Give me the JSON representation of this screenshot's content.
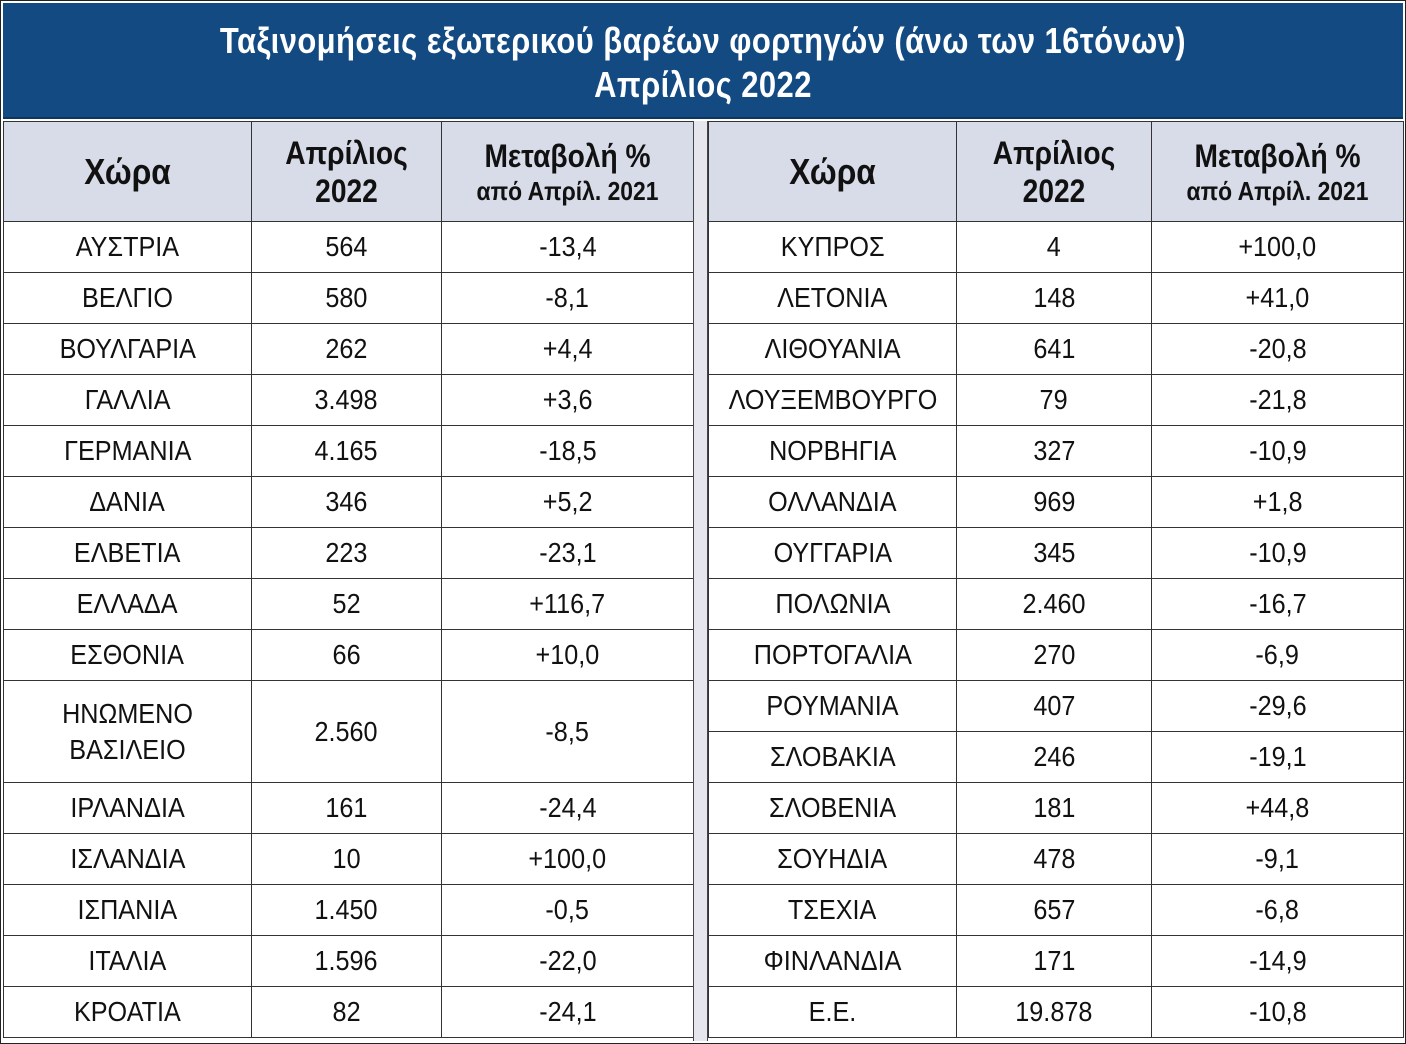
{
  "chart_data": {
    "type": "table",
    "title": "Ταξινομήσεις εξωτερικού βαρέων φορτηγών (άνω των 16τόνων)",
    "subtitle": "Απρίλιος 2022",
    "columns": {
      "country": "Χώρα",
      "value_line1": "Απρίλιος",
      "value_line2": "2022",
      "change_line1": "Μεταβολή %",
      "change_line2": "από Απρίλ. 2021"
    },
    "left_rows": [
      {
        "country": "ΑΥΣΤΡΙΑ",
        "value": "564",
        "change": "-13,4"
      },
      {
        "country": "ΒΕΛΓΙΟ",
        "value": "580",
        "change": "-8,1"
      },
      {
        "country": "ΒΟΥΛΓΑΡΙΑ",
        "value": "262",
        "change": "+4,4"
      },
      {
        "country": "ΓΑΛΛΙΑ",
        "value": "3.498",
        "change": "+3,6"
      },
      {
        "country": "ΓΕΡΜΑΝΙΑ",
        "value": "4.165",
        "change": "-18,5"
      },
      {
        "country": "ΔΑΝΙΑ",
        "value": "346",
        "change": "+5,2"
      },
      {
        "country": "ΕΛΒΕΤΙΑ",
        "value": "223",
        "change": "-23,1"
      },
      {
        "country": "ΕΛΛΑΔΑ",
        "value": "52",
        "change": "+116,7"
      },
      {
        "country": "ΕΣΘΟΝΙΑ",
        "value": "66",
        "change": "+10,0"
      },
      {
        "country": "ΗΝΩΜΕΝΟ ΒΑΣΙΛΕΙΟ",
        "value": "2.560",
        "change": "-8,5"
      },
      {
        "country": "ΙΡΛΑΝΔΙΑ",
        "value": "161",
        "change": "-24,4"
      },
      {
        "country": "ΙΣΛΑΝΔΙΑ",
        "value": "10",
        "change": "+100,0"
      },
      {
        "country": "ΙΣΠΑΝΙΑ",
        "value": "1.450",
        "change": "-0,5"
      },
      {
        "country": "ΙΤΑΛΙΑ",
        "value": "1.596",
        "change": "-22,0"
      },
      {
        "country": "ΚΡΟΑΤΙΑ",
        "value": "82",
        "change": "-24,1"
      }
    ],
    "right_rows": [
      {
        "country": "ΚΥΠΡΟΣ",
        "value": "4",
        "change": "+100,0"
      },
      {
        "country": "ΛΕΤΟΝΙΑ",
        "value": "148",
        "change": "+41,0"
      },
      {
        "country": "ΛΙΘΟΥΑΝΙΑ",
        "value": "641",
        "change": "-20,8"
      },
      {
        "country": "ΛΟΥΞΕΜΒΟΥΡΓΟ",
        "value": "79",
        "change": "-21,8"
      },
      {
        "country": "ΝΟΡΒΗΓΙΑ",
        "value": "327",
        "change": "-10,9"
      },
      {
        "country": "ΟΛΛΑΝΔΙΑ",
        "value": "969",
        "change": "+1,8"
      },
      {
        "country": "ΟΥΓΓΑΡΙΑ",
        "value": "345",
        "change": "-10,9"
      },
      {
        "country": "ΠΟΛΩΝΙΑ",
        "value": "2.460",
        "change": "-16,7"
      },
      {
        "country": "ΠΟΡΤΟΓΑΛΙΑ",
        "value": "270",
        "change": "-6,9"
      },
      {
        "country": "ΡΟΥΜΑΝΙΑ",
        "value": "407",
        "change": "-29,6"
      },
      {
        "country": "ΣΛΟΒΑΚΙΑ",
        "value": "246",
        "change": "-19,1"
      },
      {
        "country": "ΣΛΟΒΕΝΙΑ",
        "value": "181",
        "change": "+44,8"
      },
      {
        "country": "ΣΟΥΗΔΙΑ",
        "value": "478",
        "change": "-9,1"
      },
      {
        "country": "ΤΣΕΧΙΑ",
        "value": "657",
        "change": "-6,8"
      },
      {
        "country": "ΦΙΝΛΑΝΔΙΑ",
        "value": "171",
        "change": "-14,9"
      },
      {
        "country": "Ε.Ε.",
        "value": "19.878",
        "change": "-10,8"
      }
    ],
    "colors": {
      "title_bg": "#134a82",
      "header_bg": "#d8dbe8"
    }
  }
}
